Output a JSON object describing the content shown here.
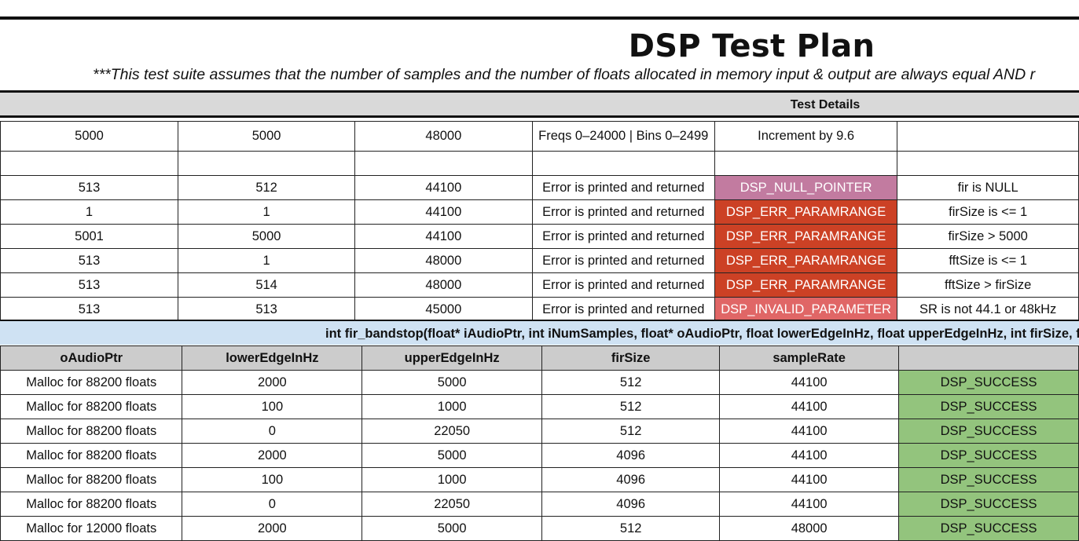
{
  "header": {
    "title": "DSP Test Plan",
    "subtitle": "***This test suite assumes that the number of samples and the number of floats allocated in memory input & output are always equal AND r",
    "test_details_label": "Test Details"
  },
  "table1": {
    "row_big": [
      "5000",
      "5000",
      "48000",
      "Freqs 0–24000 | Bins 0–2499",
      "Increment by 9.6",
      ""
    ],
    "rows": [
      [
        "513",
        "512",
        "44100",
        "Error is printed and returned",
        "DSP_NULL_POINTER",
        "fir is NULL"
      ],
      [
        "1",
        "1",
        "44100",
        "Error is printed and returned",
        "DSP_ERR_PARAMRANGE",
        "firSize is <= 1"
      ],
      [
        "5001",
        "5000",
        "44100",
        "Error is printed and returned",
        "DSP_ERR_PARAMRANGE",
        "firSize > 5000"
      ],
      [
        "513",
        "1",
        "48000",
        "Error is printed and returned",
        "DSP_ERR_PARAMRANGE",
        "fftSize is <= 1"
      ],
      [
        "513",
        "514",
        "48000",
        "Error is printed and returned",
        "DSP_ERR_PARAMRANGE",
        "fftSize > firSize"
      ],
      [
        "513",
        "513",
        "45000",
        "Error is printed and returned",
        "DSP_INVALID_PARAMETER",
        "SR is not 44.1 or 48kHz"
      ]
    ]
  },
  "signature": "int fir_bandstop(float* iAudioPtr, int iNumSamples, float* oAudioPtr, float lowerEdgeInHz, float upperEdgeInHz, int firSize, f",
  "table2": {
    "headers": [
      "oAudioPtr",
      "lowerEdgeInHz",
      "upperEdgeInHz",
      "firSize",
      "sampleRate",
      ""
    ],
    "rows": [
      [
        "Malloc for 88200 floats",
        "2000",
        "5000",
        "512",
        "44100",
        "DSP_SUCCESS"
      ],
      [
        "Malloc for 88200 floats",
        "100",
        "1000",
        "512",
        "44100",
        "DSP_SUCCESS"
      ],
      [
        "Malloc for 88200 floats",
        "0",
        "22050",
        "512",
        "44100",
        "DSP_SUCCESS"
      ],
      [
        "Malloc for 88200 floats",
        "2000",
        "5000",
        "4096",
        "44100",
        "DSP_SUCCESS"
      ],
      [
        "Malloc for 88200 floats",
        "100",
        "1000",
        "4096",
        "44100",
        "DSP_SUCCESS"
      ],
      [
        "Malloc for 88200 floats",
        "0",
        "22050",
        "4096",
        "44100",
        "DSP_SUCCESS"
      ],
      [
        "Malloc for 12000 floats",
        "2000",
        "5000",
        "512",
        "48000",
        "DSP_SUCCESS"
      ]
    ]
  },
  "colors": {
    "null_pointer": "#c27ba0",
    "paramrange": "#cc4125",
    "invalid_parameter": "#e06666",
    "success": "#93c47d",
    "signature_band": "#cfe2f3",
    "header_gray": "#cccccc"
  }
}
